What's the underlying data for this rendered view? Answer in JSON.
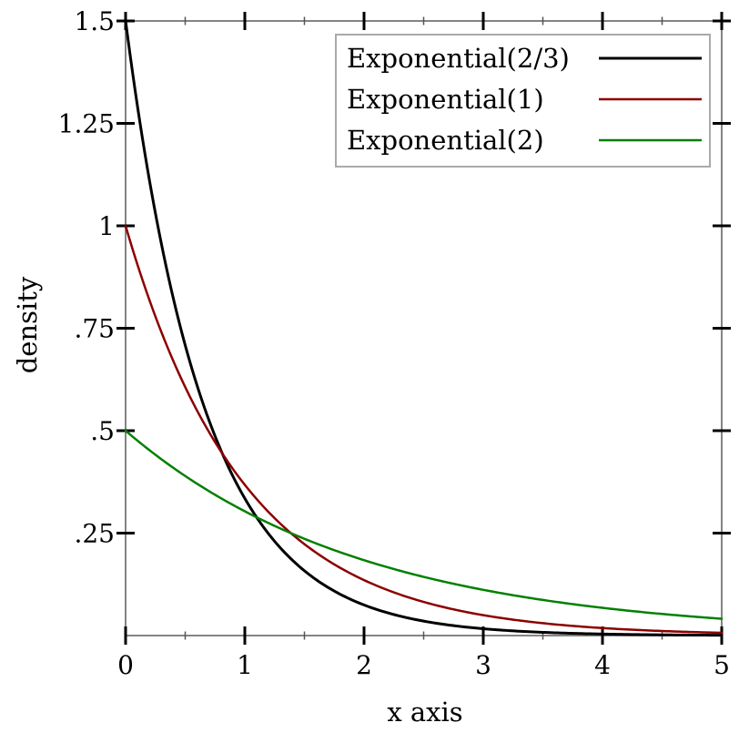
{
  "chart_data": {
    "type": "line",
    "title": "",
    "xlabel": "x axis",
    "ylabel": "density",
    "xlim": [
      0,
      5
    ],
    "ylim": [
      0,
      1.5
    ],
    "grid": false,
    "frame_color": "#848484",
    "major_tick_color": "#000000",
    "minor_tick_color": "#555555",
    "x_major_ticks": {
      "values": [
        0,
        1,
        2,
        3,
        4,
        5
      ],
      "labels": [
        "0",
        "1",
        "2",
        "3",
        "4",
        "5"
      ]
    },
    "x_minor_ticks": [
      0.5,
      1.5,
      2.5,
      3.5,
      4.5
    ],
    "y_major_ticks": {
      "values": [
        0.25,
        0.5,
        0.75,
        1,
        1.25,
        1.5
      ],
      "labels": [
        ".25",
        ".5",
        ".75",
        "1",
        "1.25",
        "1.5"
      ]
    },
    "legend": {
      "position": "top-right",
      "border_color": "#aaaaaa",
      "background": "#ffffff"
    },
    "series": [
      {
        "name": "Exponential(2/3)",
        "color": "#000000",
        "line_width": 3,
        "distribution": "exponential",
        "scale": 0.6667,
        "rate": 1.5,
        "sample_x": [
          0,
          0.5,
          1,
          1.5,
          2,
          2.5,
          3,
          3.5,
          4,
          4.5,
          5
        ],
        "sample_y": [
          1.5,
          0.7082,
          0.3347,
          0.158,
          0.0747,
          0.0353,
          0.0167,
          0.0079,
          0.0037,
          0.0018,
          0.0008
        ]
      },
      {
        "name": "Exponential(1)",
        "color": "#8b0000",
        "line_width": 2.5,
        "distribution": "exponential",
        "scale": 1,
        "rate": 1,
        "sample_x": [
          0,
          0.5,
          1,
          1.5,
          2,
          2.5,
          3,
          3.5,
          4,
          4.5,
          5
        ],
        "sample_y": [
          1.0,
          0.6065,
          0.3679,
          0.2231,
          0.1353,
          0.0821,
          0.0498,
          0.0302,
          0.0183,
          0.0111,
          0.0067
        ]
      },
      {
        "name": "Exponential(2)",
        "color": "#008000",
        "line_width": 2.5,
        "distribution": "exponential",
        "scale": 2,
        "rate": 0.5,
        "sample_x": [
          0,
          0.5,
          1,
          1.5,
          2,
          2.5,
          3,
          3.5,
          4,
          4.5,
          5
        ],
        "sample_y": [
          0.5,
          0.3894,
          0.3033,
          0.2362,
          0.184,
          0.1433,
          0.1116,
          0.0869,
          0.0677,
          0.0527,
          0.041
        ]
      }
    ]
  }
}
